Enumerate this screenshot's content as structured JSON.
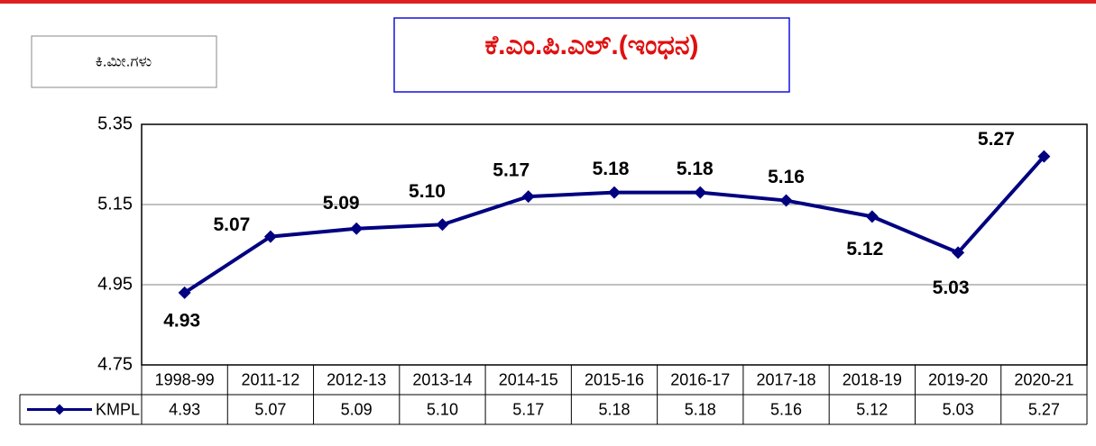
{
  "chart_data": {
    "type": "line",
    "title": "ಕೆ.ಎಂ.ಪಿ.ಎಲ್.(ಇಂಧನ)",
    "y_axis_label": "ಕಿ.ಮೀ.ಗಳು",
    "categories": [
      "1998-99",
      "2011-12",
      "2012-13",
      "2013-14",
      "2014-15",
      "2015-16",
      "2016-17",
      "2017-18",
      "2018-19",
      "2019-20",
      "2020-21"
    ],
    "series": [
      {
        "name": "KMPL",
        "color": "#000080",
        "values": [
          4.93,
          5.07,
          5.09,
          5.1,
          5.17,
          5.18,
          5.18,
          5.16,
          5.12,
          5.03,
          5.27
        ],
        "value_labels": [
          "4.93",
          "5.07",
          "5.09",
          "5.10",
          "5.17",
          "5.18",
          "5.18",
          "5.16",
          "5.12",
          "5.03",
          "5.27"
        ]
      }
    ],
    "ylim": [
      4.75,
      5.35
    ],
    "yticks": [
      4.75,
      4.95,
      5.15,
      5.35
    ],
    "grid": true,
    "data_table": true
  }
}
